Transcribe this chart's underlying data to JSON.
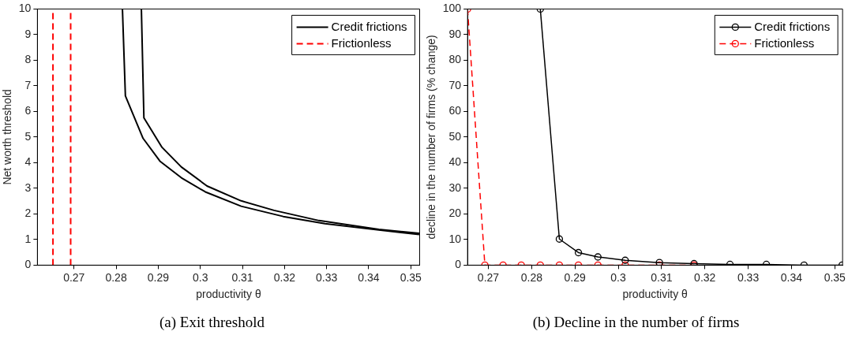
{
  "chart_data": [
    {
      "type": "line",
      "xlabel": "productivity θ",
      "ylabel": "Net worth threshold",
      "annotations": [
        "(a) Exit threshold"
      ],
      "legend": "top right",
      "grid": false,
      "xlim": [
        0.2613,
        0.3521
      ],
      "xticks": [
        0.27,
        0.28,
        0.29,
        0.3,
        0.31,
        0.32,
        0.33,
        0.34,
        0.35
      ],
      "ylim": [
        0,
        10
      ],
      "yticks": [
        0,
        1,
        2,
        3,
        4,
        5,
        6,
        7,
        8,
        9,
        10
      ],
      "series": [
        {
          "name": "Credit frictions",
          "color": "#000000",
          "line_style": "solid",
          "x": [
            0.2815,
            0.2822,
            0.2864,
            0.2904,
            0.2955,
            0.3012,
            0.3097,
            0.3197,
            0.3296,
            0.3424,
            0.352
          ],
          "values": [
            10,
            6.61,
            4.95,
            4.06,
            3.41,
            2.86,
            2.3,
            1.9,
            1.62,
            1.37,
            1.2
          ]
        },
        {
          "color": "#000000",
          "line_style": "solid",
          "x": [
            0.286,
            0.2866,
            0.2909,
            0.2955,
            0.3016,
            0.3097,
            0.3175,
            0.3282,
            0.3424,
            0.352
          ],
          "values": [
            10,
            5.75,
            4.6,
            3.83,
            3.09,
            2.51,
            2.14,
            1.74,
            1.4,
            1.24
          ]
        },
        {
          "name": "Frictionless",
          "color": "#ff0000",
          "line_style": "dashed",
          "x": [
            0.265,
            0.265
          ],
          "values": [
            0,
            10
          ]
        },
        {
          "color": "#ff0000",
          "line_style": "dashed",
          "x": [
            0.2692,
            0.2692
          ],
          "values": [
            0,
            10
          ]
        }
      ]
    },
    {
      "type": "line",
      "xlabel": "productivity θ",
      "ylabel": "decline in the number of firms (% change)",
      "annotations": [
        "(b) Decline in the number of firms"
      ],
      "legend": "top right",
      "grid": false,
      "marker": "circle",
      "xlim": [
        0.2652,
        0.3518
      ],
      "xticks": [
        0.27,
        0.28,
        0.29,
        0.3,
        0.31,
        0.32,
        0.33,
        0.34,
        0.35
      ],
      "ylim": [
        0,
        100
      ],
      "yticks": [
        0,
        10,
        20,
        30,
        40,
        50,
        60,
        70,
        80,
        90,
        100
      ],
      "series": [
        {
          "name": "Credit frictions",
          "color": "#000000",
          "line_style": "solid",
          "x": [
            0.282,
            0.2864,
            0.2908,
            0.2953,
            0.3016,
            0.3095,
            0.3175,
            0.3258,
            0.3342,
            0.3429,
            0.3517
          ],
          "values": [
            100,
            10.2,
            4.9,
            3.2,
            1.9,
            1,
            0.6,
            0.3,
            0.3,
            0,
            0
          ]
        },
        {
          "name": "Frictionless",
          "color": "#ff0000",
          "line_style": "dashed",
          "x": [
            0.2652,
            0.2692,
            0.2734,
            0.2776,
            0.282,
            0.2864,
            0.2908,
            0.2953,
            0.3016,
            0.3095,
            0.3175
          ],
          "values": [
            100,
            0,
            0,
            0,
            0,
            0,
            0,
            0,
            0,
            0,
            0
          ]
        }
      ]
    }
  ]
}
